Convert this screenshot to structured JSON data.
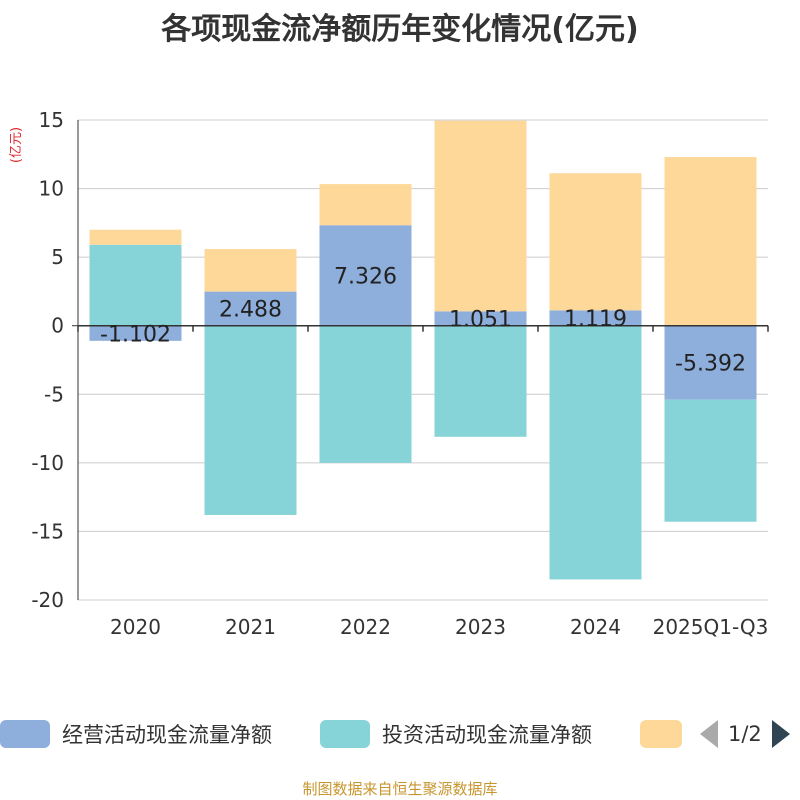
{
  "chart_data": {
    "type": "bar",
    "stacked": true,
    "title": "各项现金流净额历年变化情况(亿元)",
    "ylabel": "(亿元)",
    "xlabel": "",
    "ylim": [
      -20,
      15
    ],
    "yticks": [
      15,
      10,
      5,
      0,
      -5,
      -10,
      -15,
      -20
    ],
    "ytick_labels": [
      "15",
      "10",
      "5",
      "0",
      "-5",
      "-10",
      "-15",
      "-20"
    ],
    "grid": true,
    "categories": [
      "2020",
      "2021",
      "2022",
      "2023",
      "2024",
      "2025Q1-Q3"
    ],
    "series": [
      {
        "name": "经营活动现金流量净额",
        "color": "#8eaedb",
        "show_labels": true,
        "values": [
          -1.102,
          2.488,
          7.326,
          1.051,
          1.119,
          -5.392
        ],
        "labels": [
          "-1.102",
          "2.488",
          "7.326",
          "1.051",
          "1.119",
          "-5.392"
        ]
      },
      {
        "name": "投资活动现金流量净额",
        "color": "#86d4d7",
        "show_labels": false,
        "values": [
          5.9,
          -13.8,
          -10.0,
          -8.1,
          -18.5,
          -8.9
        ]
      },
      {
        "name": "",
        "color": "#fdd898",
        "show_labels": false,
        "values": [
          1.1,
          3.1,
          3.0,
          13.9,
          10.0,
          12.3
        ]
      }
    ]
  },
  "legend": {
    "items": [
      {
        "label": "经营活动现金流量净额",
        "color": "#8eaedb"
      },
      {
        "label": "投资活动现金流量净额",
        "color": "#86d4d7"
      },
      {
        "label": "",
        "color": "#fdd898"
      }
    ],
    "page_text": "1/2"
  },
  "footer": {
    "source": "制图数据来自恒生聚源数据库"
  }
}
